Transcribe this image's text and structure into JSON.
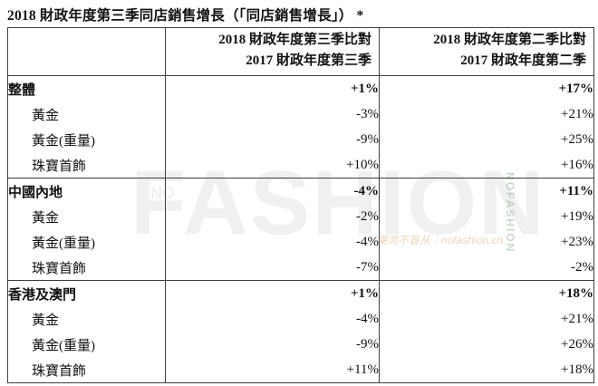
{
  "page": {
    "title": "2018 財政年度第三季同店銷售增長（「同店銷售增長」） *"
  },
  "table": {
    "headers": {
      "col2": {
        "line1": "2018 財政年度第三季比對",
        "line2": "2017 財政年度第三季"
      },
      "col3": {
        "line1": "2018 財政年度第二季比對",
        "line2": "2017 財政年度第二季"
      }
    },
    "rows": [
      {
        "label": "整體",
        "q3_vs_q3": "+1%",
        "q2_vs_q2": "+17%",
        "style": "group"
      },
      {
        "label": "黃金",
        "q3_vs_q3": "-3%",
        "q2_vs_q2": "+21%",
        "style": "sub"
      },
      {
        "label": "黃金(重量)",
        "q3_vs_q3": "-9%",
        "q2_vs_q2": "+25%",
        "style": "sub"
      },
      {
        "label": "珠寶首飾",
        "q3_vs_q3": "+10%",
        "q2_vs_q2": "+16%",
        "style": "sub"
      },
      {
        "label": "中國內地",
        "q3_vs_q3": "-4%",
        "q2_vs_q2": "+11%",
        "style": "group"
      },
      {
        "label": "黃金",
        "q3_vs_q3": "-2%",
        "q2_vs_q2": "+19%",
        "style": "sub"
      },
      {
        "label": "黃金(重量)",
        "q3_vs_q3": "-4%",
        "q2_vs_q2": "+23%",
        "style": "sub"
      },
      {
        "label": "珠寶首飾",
        "q3_vs_q3": "-7%",
        "q2_vs_q2": "-2%",
        "style": "sub"
      },
      {
        "label": "香港及澳門",
        "q3_vs_q3": "+1%",
        "q2_vs_q2": "+18%",
        "style": "group"
      },
      {
        "label": "黃金",
        "q3_vs_q3": "-4%",
        "q2_vs_q2": "+21%",
        "style": "sub"
      },
      {
        "label": "黃金(重量)",
        "q3_vs_q3": "-9%",
        "q2_vs_q2": "+26%",
        "style": "sub"
      },
      {
        "label": "珠寶首飾",
        "q3_vs_q3": "+11%",
        "q2_vs_q2": "+18%",
        "style": "sub"
      }
    ]
  },
  "watermark": {
    "prefix": "NO",
    "main": "FASHION",
    "vertical": "NOFASHION",
    "tagline": "潮流不盲从｜nofashion.cn"
  },
  "colors": {
    "border": "#3f3f3f",
    "text": "#111111"
  }
}
